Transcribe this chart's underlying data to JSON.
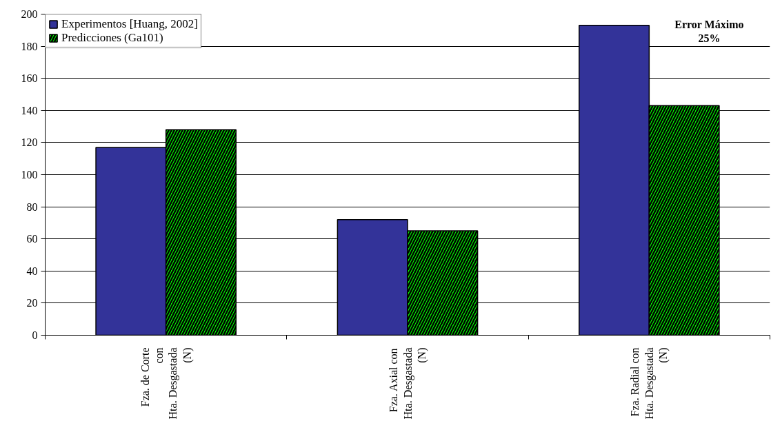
{
  "chart_data": {
    "type": "bar",
    "categories": [
      "Fza. de Corte\ncon\nHta. Desgastada\n(N)",
      "Fza. Axial con\nHta. Desgastada\n(N)",
      "Fza. Radial con\nHta. Desgastada\n(N)"
    ],
    "series": [
      {
        "name": "Experimentos [Huang, 2002]",
        "color": "#333399",
        "values": [
          117,
          72,
          193
        ]
      },
      {
        "name": "Predicciones (Ga101)",
        "color": "#00ff00",
        "values": [
          128,
          65,
          143
        ]
      }
    ],
    "ylim": [
      0,
      200
    ],
    "yticks": [
      0,
      20,
      40,
      60,
      80,
      100,
      120,
      140,
      160,
      180,
      200
    ],
    "grid": "y",
    "legend": "top left",
    "annotations": [
      "Error Máximo\n25%"
    ]
  }
}
